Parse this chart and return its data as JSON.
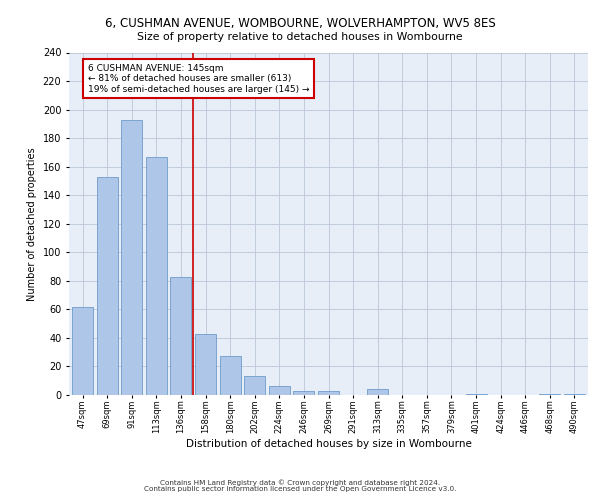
{
  "title": "6, CUSHMAN AVENUE, WOMBOURNE, WOLVERHAMPTON, WV5 8ES",
  "subtitle": "Size of property relative to detached houses in Wombourne",
  "xlabel": "Distribution of detached houses by size in Wombourne",
  "ylabel": "Number of detached properties",
  "bar_labels": [
    "47sqm",
    "69sqm",
    "91sqm",
    "113sqm",
    "136sqm",
    "158sqm",
    "180sqm",
    "202sqm",
    "224sqm",
    "246sqm",
    "269sqm",
    "291sqm",
    "313sqm",
    "335sqm",
    "357sqm",
    "379sqm",
    "401sqm",
    "424sqm",
    "446sqm",
    "468sqm",
    "490sqm"
  ],
  "bar_values": [
    62,
    153,
    193,
    167,
    83,
    43,
    27,
    13,
    6,
    3,
    3,
    0,
    4,
    0,
    0,
    0,
    1,
    0,
    0,
    1,
    1
  ],
  "bar_color": "#aec6e8",
  "bar_edge_color": "#5a8fc2",
  "grid_color": "#c0ccdd",
  "background_color": "#e8eef7",
  "vline_x": 4.5,
  "vline_color": "#cc0000",
  "annotation_text": "6 CUSHMAN AVENUE: 145sqm\n← 81% of detached houses are smaller (613)\n19% of semi-detached houses are larger (145) →",
  "annotation_box_color": "#ffffff",
  "annotation_border_color": "#cc0000",
  "ylim": [
    0,
    240
  ],
  "yticks": [
    0,
    20,
    40,
    60,
    80,
    100,
    120,
    140,
    160,
    180,
    200,
    220,
    240
  ],
  "footer_line1": "Contains HM Land Registry data © Crown copyright and database right 2024.",
  "footer_line2": "Contains public sector information licensed under the Open Government Licence v3.0."
}
